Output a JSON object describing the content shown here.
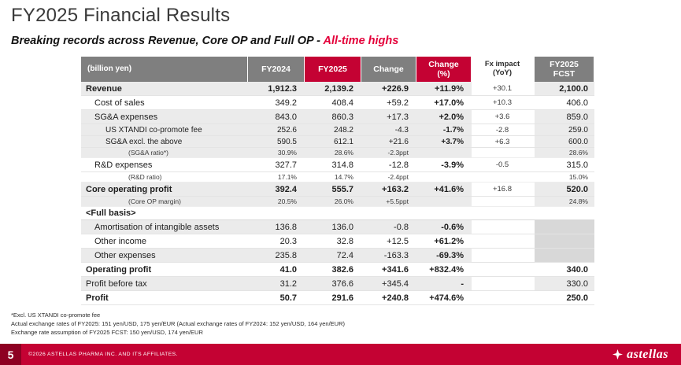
{
  "title": "FY2025 Financial Results",
  "subtitle": {
    "main": "Breaking records across Revenue, Core OP and Full OP - ",
    "highlight": "All-time highs"
  },
  "colors": {
    "brand_red": "#C40233",
    "highlight_red": "#E4003A",
    "header_gray": "#7F7F7F",
    "row_shade": "#EBEBEB",
    "block_gray": "#D8D8D8",
    "page_box_red": "#8D0022"
  },
  "table": {
    "unit_label": "(billion yen)",
    "columns": [
      {
        "key": "fy2024",
        "label": "FY2024",
        "style": "gray"
      },
      {
        "key": "fy2025",
        "label": "FY2025",
        "style": "red"
      },
      {
        "key": "change",
        "label": "Change",
        "style": "gray"
      },
      {
        "key": "change_pct",
        "label": "Change\n(%)",
        "style": "red"
      },
      {
        "key": "fx_impact",
        "label": "Fx impact\n(YoY)",
        "style": "plain"
      },
      {
        "key": "fcst",
        "label": "FY2025\nFCST",
        "style": "gray"
      }
    ],
    "rows": [
      {
        "label": "Revenue",
        "indent": 0,
        "bold": true,
        "shaded": true,
        "values": [
          "1,912.3",
          "2,139.2",
          "+226.9",
          "+11.9%",
          "+30.1",
          "2,100.0"
        ]
      },
      {
        "label": "Cost of sales",
        "indent": 1,
        "values": [
          "349.2",
          "408.4",
          "+59.2",
          "+17.0%",
          "+10.3",
          "406.0"
        ]
      },
      {
        "label": "SG&A expenses",
        "indent": 1,
        "shaded": true,
        "values": [
          "843.0",
          "860.3",
          "+17.3",
          "+2.0%",
          "+3.6",
          "859.0"
        ]
      },
      {
        "label": "US XTANDI co-promote fee",
        "indent": 2,
        "small": true,
        "shaded": true,
        "values": [
          "252.6",
          "248.2",
          "-4.3",
          "-1.7%",
          "-2.8",
          "259.0"
        ]
      },
      {
        "label": "SG&A excl. the above",
        "indent": 2,
        "small": true,
        "shaded": true,
        "values": [
          "590.5",
          "612.1",
          "+21.6",
          "+3.7%",
          "+6.3",
          "600.0"
        ]
      },
      {
        "label": "(SG&A ratio*)",
        "indent": 3,
        "ratio": true,
        "shaded": true,
        "values": [
          "30.9%",
          "28.6%",
          "-2.3ppt",
          "",
          "",
          "28.6%"
        ]
      },
      {
        "label": "R&D expenses",
        "indent": 1,
        "values": [
          "327.7",
          "314.8",
          "-12.8",
          "-3.9%",
          "-0.5",
          "315.0"
        ]
      },
      {
        "label": "(R&D ratio)",
        "indent": 3,
        "ratio": true,
        "values": [
          "17.1%",
          "14.7%",
          "-2.4ppt",
          "",
          "",
          "15.0%"
        ]
      },
      {
        "label": "Core operating profit",
        "indent": 0,
        "bold": true,
        "shaded": true,
        "values": [
          "392.4",
          "555.7",
          "+163.2",
          "+41.6%",
          "+16.8",
          "520.0"
        ]
      },
      {
        "label": "(Core OP margin)",
        "indent": 3,
        "ratio": true,
        "shaded": true,
        "values": [
          "20.5%",
          "26.0%",
          "+5.5ppt",
          "",
          "",
          "24.8%"
        ]
      },
      {
        "label": "<Full basis>",
        "indent": 0,
        "bold": true,
        "section": true,
        "values": [
          "",
          "",
          "",
          "",
          "",
          ""
        ]
      },
      {
        "label": "Amortisation of intangible assets",
        "indent": 1,
        "shaded": true,
        "fcst_block": true,
        "values": [
          "136.8",
          "136.0",
          "-0.8",
          "-0.6%",
          "",
          ""
        ]
      },
      {
        "label": "Other income",
        "indent": 1,
        "fcst_block": true,
        "values": [
          "20.3",
          "32.8",
          "+12.5",
          "+61.2%",
          "",
          ""
        ]
      },
      {
        "label": "Other expenses",
        "indent": 1,
        "shaded": true,
        "fcst_block": true,
        "values": [
          "235.8",
          "72.4",
          "-163.3",
          "-69.3%",
          "",
          ""
        ]
      },
      {
        "label": "Operating profit",
        "indent": 0,
        "bold": true,
        "values": [
          "41.0",
          "382.6",
          "+341.6",
          "+832.4%",
          "",
          "340.0"
        ]
      },
      {
        "label": "Profit before tax",
        "indent": 0,
        "shaded": true,
        "values": [
          "31.2",
          "376.6",
          "+345.4",
          "-",
          "",
          "330.0"
        ]
      },
      {
        "label": "Profit",
        "indent": 0,
        "bold": true,
        "values": [
          "50.7",
          "291.6",
          "+240.8",
          "+474.6%",
          "",
          "250.0"
        ]
      }
    ]
  },
  "footnotes": [
    "*Excl. US XTANDI co-promote fee",
    "Actual exchange rates of FY2025: 151 yen/USD, 175 yen/EUR (Actual exchange rates of FY2024: 152 yen/USD, 164 yen/EUR)",
    "Exchange rate assumption of FY2025 FCST: 150 yen/USD, 174 yen/EUR"
  ],
  "footer": {
    "page_number": "5",
    "copyright": "©2026 ASTELLAS PHARMA INC. AND ITS AFFILIATES.",
    "logo_text": "astellas"
  }
}
